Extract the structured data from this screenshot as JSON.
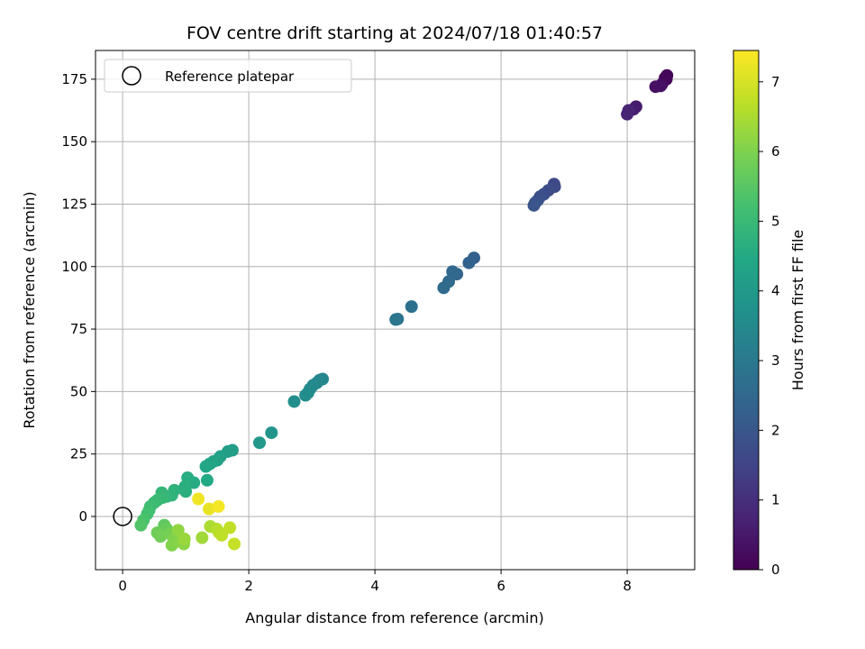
{
  "chart_data": {
    "type": "scatter",
    "title": "FOV centre drift starting at 2024/07/18 01:40:57",
    "xlabel": "Angular distance from reference (arcmin)",
    "ylabel": "Rotation from reference (arcmin)",
    "xlim": [
      -0.43,
      9.07
    ],
    "ylim": [
      -21.3,
      186.5
    ],
    "xticks": [
      0,
      2,
      4,
      6,
      8
    ],
    "yticks": [
      0,
      25,
      50,
      75,
      100,
      125,
      150,
      175
    ],
    "grid": true,
    "legend": {
      "placement": "top-left",
      "entries": [
        "Reference platepar"
      ]
    },
    "reference_point": {
      "x": 0,
      "y": 0,
      "label": "Reference platepar"
    },
    "colorbar": {
      "label": "Hours from first FF file",
      "colormap": "viridis",
      "range": [
        0,
        7.45
      ],
      "ticks": [
        0,
        1,
        2,
        3,
        4,
        5,
        6,
        7
      ]
    },
    "points": [
      {
        "x": 8.63,
        "y": 176.5,
        "c": 0.05
      },
      {
        "x": 8.6,
        "y": 175.5,
        "c": 0.1
      },
      {
        "x": 8.62,
        "y": 175.0,
        "c": 0.12
      },
      {
        "x": 8.55,
        "y": 173.0,
        "c": 0.2
      },
      {
        "x": 8.45,
        "y": 172.0,
        "c": 0.3
      },
      {
        "x": 8.53,
        "y": 172.3,
        "c": 0.35
      },
      {
        "x": 8.14,
        "y": 164.0,
        "c": 0.55
      },
      {
        "x": 8.1,
        "y": 163.0,
        "c": 0.6
      },
      {
        "x": 8.0,
        "y": 161.0,
        "c": 0.7
      },
      {
        "x": 8.02,
        "y": 162.5,
        "c": 0.75
      },
      {
        "x": 6.84,
        "y": 133.0,
        "c": 1.6
      },
      {
        "x": 6.85,
        "y": 132.0,
        "c": 1.65
      },
      {
        "x": 6.75,
        "y": 130.5,
        "c": 1.7
      },
      {
        "x": 6.68,
        "y": 129.0,
        "c": 1.75
      },
      {
        "x": 6.62,
        "y": 128.0,
        "c": 1.8
      },
      {
        "x": 6.58,
        "y": 126.5,
        "c": 1.85
      },
      {
        "x": 6.54,
        "y": 125.5,
        "c": 1.9
      },
      {
        "x": 6.52,
        "y": 124.5,
        "c": 1.95
      },
      {
        "x": 5.57,
        "y": 103.5,
        "c": 2.3
      },
      {
        "x": 5.49,
        "y": 101.5,
        "c": 2.35
      },
      {
        "x": 5.3,
        "y": 97.0,
        "c": 2.45
      },
      {
        "x": 5.23,
        "y": 98.0,
        "c": 2.5
      },
      {
        "x": 5.17,
        "y": 94.0,
        "c": 2.55
      },
      {
        "x": 5.09,
        "y": 91.5,
        "c": 2.6
      },
      {
        "x": 4.58,
        "y": 84.0,
        "c": 2.75
      },
      {
        "x": 4.36,
        "y": 79.0,
        "c": 2.85
      },
      {
        "x": 4.33,
        "y": 78.8,
        "c": 2.9
      },
      {
        "x": 3.17,
        "y": 55.0,
        "c": 3.4
      },
      {
        "x": 3.12,
        "y": 54.5,
        "c": 3.42
      },
      {
        "x": 3.08,
        "y": 53.5,
        "c": 3.45
      },
      {
        "x": 3.02,
        "y": 52.5,
        "c": 3.5
      },
      {
        "x": 2.97,
        "y": 51.0,
        "c": 3.52
      },
      {
        "x": 2.94,
        "y": 49.5,
        "c": 3.55
      },
      {
        "x": 2.9,
        "y": 48.5,
        "c": 3.58
      },
      {
        "x": 2.72,
        "y": 46.0,
        "c": 3.65
      },
      {
        "x": 2.36,
        "y": 33.5,
        "c": 3.85
      },
      {
        "x": 2.17,
        "y": 29.5,
        "c": 3.95
      },
      {
        "x": 1.74,
        "y": 26.5,
        "c": 4.1
      },
      {
        "x": 1.67,
        "y": 26.0,
        "c": 4.15
      },
      {
        "x": 1.55,
        "y": 24.0,
        "c": 4.2
      },
      {
        "x": 1.5,
        "y": 22.5,
        "c": 4.25
      },
      {
        "x": 1.44,
        "y": 22.0,
        "c": 4.3
      },
      {
        "x": 1.38,
        "y": 21.0,
        "c": 4.35
      },
      {
        "x": 1.32,
        "y": 20.0,
        "c": 4.4
      },
      {
        "x": 1.34,
        "y": 14.5,
        "c": 4.5
      },
      {
        "x": 1.13,
        "y": 13.5,
        "c": 4.55
      },
      {
        "x": 1.03,
        "y": 15.5,
        "c": 4.6
      },
      {
        "x": 0.99,
        "y": 12.0,
        "c": 4.65
      },
      {
        "x": 1.0,
        "y": 10.0,
        "c": 4.7
      },
      {
        "x": 0.82,
        "y": 10.5,
        "c": 4.75
      },
      {
        "x": 0.78,
        "y": 8.5,
        "c": 4.8
      },
      {
        "x": 0.7,
        "y": 8.0,
        "c": 4.85
      },
      {
        "x": 0.62,
        "y": 9.5,
        "c": 4.9
      },
      {
        "x": 0.63,
        "y": 7.5,
        "c": 4.95
      },
      {
        "x": 0.55,
        "y": 6.5,
        "c": 5.0
      },
      {
        "x": 0.5,
        "y": 5.5,
        "c": 5.05
      },
      {
        "x": 0.44,
        "y": 4.0,
        "c": 5.1
      },
      {
        "x": 0.42,
        "y": 2.5,
        "c": 5.15
      },
      {
        "x": 0.39,
        "y": 1.0,
        "c": 5.2
      },
      {
        "x": 0.33,
        "y": -1.5,
        "c": 5.3
      },
      {
        "x": 0.29,
        "y": -3.5,
        "c": 5.4
      },
      {
        "x": 0.66,
        "y": -3.5,
        "c": 5.6
      },
      {
        "x": 0.7,
        "y": -5.0,
        "c": 5.7
      },
      {
        "x": 0.55,
        "y": -6.5,
        "c": 5.8
      },
      {
        "x": 0.6,
        "y": -8.0,
        "c": 5.85
      },
      {
        "x": 0.75,
        "y": -7.0,
        "c": 5.9
      },
      {
        "x": 0.82,
        "y": -9.0,
        "c": 6.0
      },
      {
        "x": 0.78,
        "y": -11.5,
        "c": 6.05
      },
      {
        "x": 0.9,
        "y": -10.0,
        "c": 6.1
      },
      {
        "x": 0.97,
        "y": -11.0,
        "c": 6.15
      },
      {
        "x": 0.88,
        "y": -5.5,
        "c": 6.2
      },
      {
        "x": 0.98,
        "y": -9.0,
        "c": 6.3
      },
      {
        "x": 1.26,
        "y": -8.5,
        "c": 6.4
      },
      {
        "x": 1.39,
        "y": -4.0,
        "c": 6.5
      },
      {
        "x": 1.49,
        "y": -5.0,
        "c": 6.6
      },
      {
        "x": 1.53,
        "y": -6.5,
        "c": 6.65
      },
      {
        "x": 1.57,
        "y": -7.5,
        "c": 6.7
      },
      {
        "x": 1.7,
        "y": -4.5,
        "c": 6.75
      },
      {
        "x": 1.77,
        "y": -11.0,
        "c": 6.8
      },
      {
        "x": 1.37,
        "y": 3.0,
        "c": 7.2
      },
      {
        "x": 1.2,
        "y": 7.0,
        "c": 7.3
      },
      {
        "x": 1.52,
        "y": 4.0,
        "c": 7.35
      }
    ]
  }
}
